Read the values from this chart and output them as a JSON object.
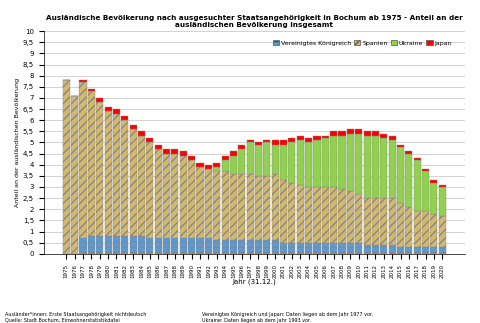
{
  "title": "Ausländische Bevölkerung nach ausgesuchter Staatsangehörigkeit in Bochum ab 1975 - Anteil an der\nausländischen Bevölkerung insgesamt",
  "xlabel": "Jahr (31.12.)",
  "ylabel": "Anteil an der ausländischen Bevölkerung",
  "footnote_left": "Ausländer*innen: Erste Staatsangehörigkeit nichtdeutsch\nQuelle: Stadt Bochum, Einwohnerstatistikdatei",
  "footnote_right": "Vereinigtes Königreich und Japan: Daten liegen ab dem Jahr 1977 vor.\nUkraine: Daten liegen ab dem Jahr 1993 vor.",
  "years": [
    1975,
    1976,
    1977,
    1978,
    1979,
    1980,
    1981,
    1982,
    1983,
    1984,
    1985,
    1986,
    1987,
    1988,
    1989,
    1990,
    1991,
    1992,
    1993,
    1994,
    1995,
    1996,
    1997,
    1998,
    1999,
    2000,
    2001,
    2002,
    2003,
    2004,
    2005,
    2006,
    2007,
    2008,
    2009,
    2010,
    2011,
    2012,
    2013,
    2014,
    2015,
    2016,
    2017,
    2018,
    2019,
    2020
  ],
  "vereinigtes_koenigreich": [
    0.0,
    0.0,
    0.7,
    0.8,
    0.8,
    0.8,
    0.8,
    0.8,
    0.8,
    0.8,
    0.7,
    0.7,
    0.7,
    0.7,
    0.7,
    0.7,
    0.7,
    0.7,
    0.6,
    0.6,
    0.6,
    0.6,
    0.6,
    0.6,
    0.6,
    0.6,
    0.5,
    0.5,
    0.5,
    0.5,
    0.5,
    0.5,
    0.5,
    0.5,
    0.5,
    0.5,
    0.4,
    0.4,
    0.4,
    0.4,
    0.3,
    0.3,
    0.3,
    0.3,
    0.3,
    0.3
  ],
  "spanien": [
    7.8,
    7.1,
    7.0,
    6.5,
    6.0,
    5.6,
    5.5,
    5.2,
    4.8,
    4.5,
    4.3,
    4.0,
    3.8,
    3.8,
    3.7,
    3.5,
    3.2,
    3.1,
    3.1,
    3.1,
    3.0,
    3.0,
    3.0,
    2.9,
    2.9,
    3.0,
    2.8,
    2.7,
    2.6,
    2.5,
    2.5,
    2.5,
    2.5,
    2.4,
    2.3,
    2.2,
    2.1,
    2.1,
    2.1,
    2.1,
    2.0,
    1.8,
    1.6,
    1.6,
    1.5,
    1.4
  ],
  "ukraine": [
    0.0,
    0.0,
    0.0,
    0.0,
    0.0,
    0.0,
    0.0,
    0.0,
    0.0,
    0.0,
    0.0,
    0.0,
    0.0,
    0.0,
    0.0,
    0.0,
    0.0,
    0.0,
    0.2,
    0.5,
    0.8,
    1.1,
    1.4,
    1.4,
    1.5,
    1.3,
    1.6,
    1.8,
    2.0,
    2.0,
    2.1,
    2.2,
    2.3,
    2.4,
    2.6,
    2.7,
    2.8,
    2.8,
    2.7,
    2.6,
    2.5,
    2.4,
    2.3,
    1.8,
    1.4,
    1.3
  ],
  "japan": [
    0.0,
    0.0,
    0.1,
    0.1,
    0.2,
    0.2,
    0.2,
    0.2,
    0.2,
    0.2,
    0.2,
    0.2,
    0.2,
    0.2,
    0.2,
    0.2,
    0.2,
    0.2,
    0.2,
    0.2,
    0.2,
    0.2,
    0.1,
    0.1,
    0.1,
    0.2,
    0.2,
    0.2,
    0.2,
    0.2,
    0.2,
    0.1,
    0.2,
    0.2,
    0.2,
    0.2,
    0.2,
    0.2,
    0.2,
    0.2,
    0.1,
    0.1,
    0.1,
    0.1,
    0.1,
    0.1
  ],
  "color_vk": "#5B9BD5",
  "color_spanien": "#D4B96A",
  "color_ukraine": "#92D050",
  "color_japan": "#FF0000",
  "hatch_vk": "---",
  "hatch_spanien": "////",
  "ylim": [
    0,
    10
  ],
  "yticks": [
    0,
    0.5,
    1,
    1.5,
    2,
    2.5,
    3,
    3.5,
    4,
    4.5,
    5,
    5.5,
    6,
    6.5,
    7,
    7.5,
    8,
    8.5,
    9,
    9.5,
    10
  ],
  "background_color": "#FFFFFF",
  "grid_color": "#C0C0C0"
}
